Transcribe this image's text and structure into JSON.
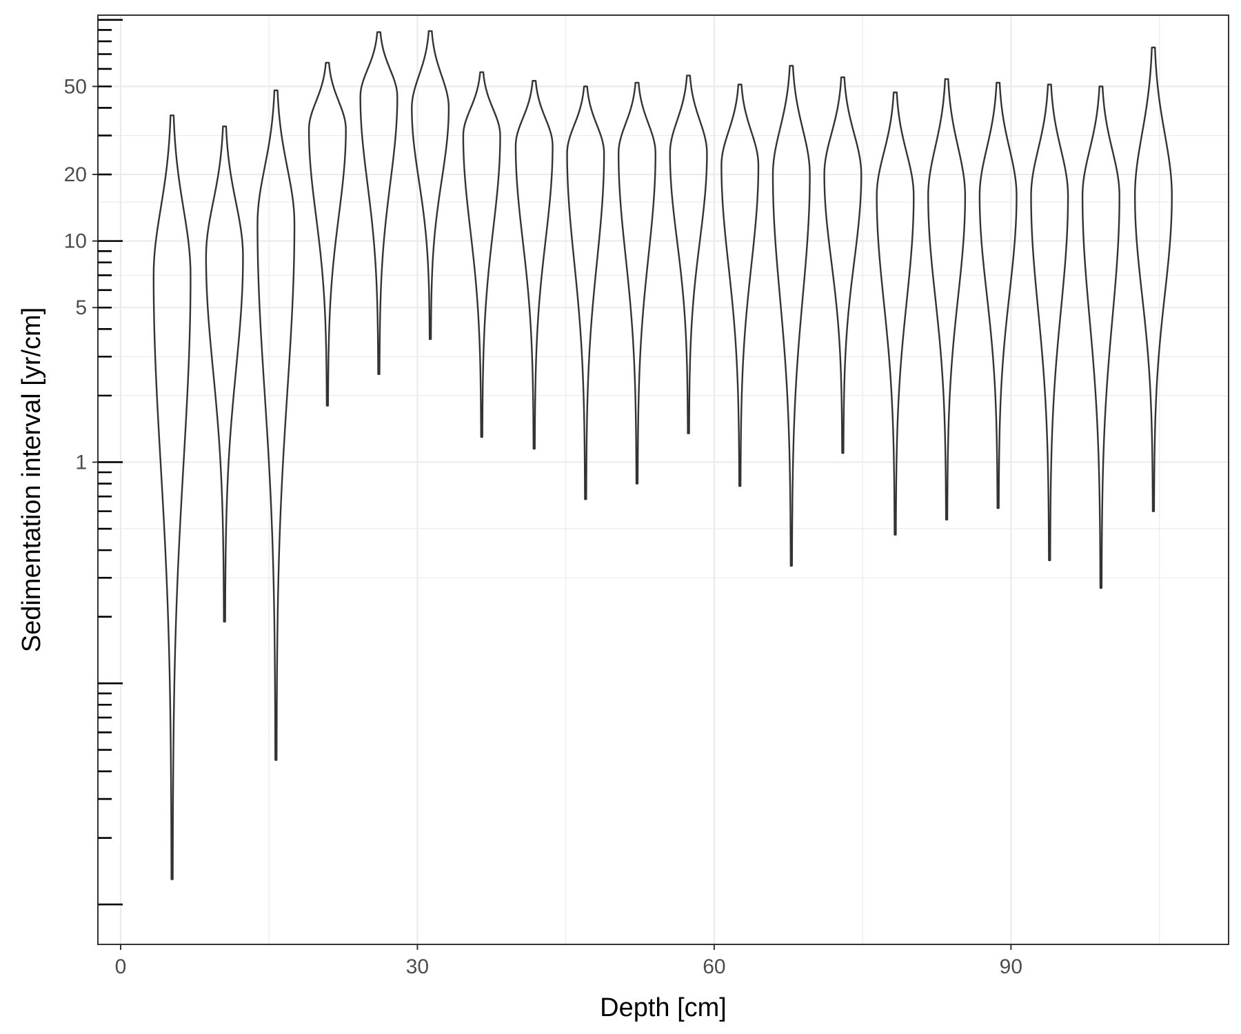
{
  "chart_data": {
    "type": "violin",
    "xlabel": "Depth [cm]",
    "ylabel": "Sedimentation interval [yr/cm]",
    "x_ticks": [
      0,
      30,
      60,
      90
    ],
    "x_tick_labels": [
      "0",
      "30",
      "60",
      "90"
    ],
    "xlim": [
      -2.3,
      112
    ],
    "y_scale": "log10",
    "y_ticks": [
      1,
      5,
      10,
      20,
      50
    ],
    "y_tick_labels": [
      "1",
      "5",
      "10",
      "20",
      "50"
    ],
    "ylim": [
      0.0066,
      105
    ],
    "grid": true,
    "violins": [
      {
        "depth": 5.2,
        "min": 0.013,
        "max": 37,
        "median": 7
      },
      {
        "depth": 10.5,
        "min": 0.19,
        "max": 33,
        "median": 8.5
      },
      {
        "depth": 15.7,
        "min": 0.045,
        "max": 48,
        "median": 12
      },
      {
        "depth": 20.9,
        "min": 1.8,
        "max": 64,
        "median": 32
      },
      {
        "depth": 26.1,
        "min": 2.5,
        "max": 88,
        "median": 45
      },
      {
        "depth": 31.3,
        "min": 3.6,
        "max": 89,
        "median": 40
      },
      {
        "depth": 36.5,
        "min": 1.3,
        "max": 58,
        "median": 30
      },
      {
        "depth": 41.8,
        "min": 1.15,
        "max": 53,
        "median": 27
      },
      {
        "depth": 47.0,
        "min": 0.68,
        "max": 50,
        "median": 25
      },
      {
        "depth": 52.2,
        "min": 0.8,
        "max": 52,
        "median": 25
      },
      {
        "depth": 57.4,
        "min": 1.35,
        "max": 56,
        "median": 25
      },
      {
        "depth": 62.6,
        "min": 0.78,
        "max": 51,
        "median": 22
      },
      {
        "depth": 67.8,
        "min": 0.34,
        "max": 62,
        "median": 20
      },
      {
        "depth": 73.0,
        "min": 1.1,
        "max": 55,
        "median": 20
      },
      {
        "depth": 78.3,
        "min": 0.47,
        "max": 47,
        "median": 16
      },
      {
        "depth": 83.5,
        "min": 0.55,
        "max": 54,
        "median": 16
      },
      {
        "depth": 88.7,
        "min": 0.62,
        "max": 52,
        "median": 16
      },
      {
        "depth": 93.9,
        "min": 0.36,
        "max": 51,
        "median": 16
      },
      {
        "depth": 99.1,
        "min": 0.27,
        "max": 50,
        "median": 16
      },
      {
        "depth": 104.4,
        "min": 0.6,
        "max": 75,
        "median": 16
      }
    ]
  }
}
